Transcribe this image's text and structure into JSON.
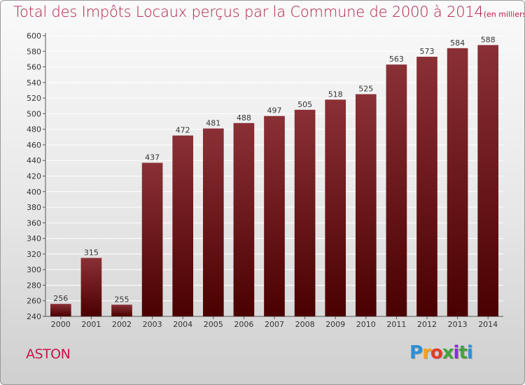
{
  "title": "Total des Impôts Locaux perçus par la Commune de 2000 à 2014",
  "unit": "(en milliers d'€)",
  "commune": "ASTON",
  "brand": "Proxiti",
  "colors": {
    "bar_top": "#8a3036",
    "bar_bottom": "#4a0000",
    "title": "#b51f45",
    "grid": "#ffffff"
  },
  "chart_data": {
    "type": "bar",
    "title": "Total des Impôts Locaux perçus par la Commune de 2000 à 2014",
    "subtitle": "(en milliers d'€)",
    "xlabel": "",
    "ylabel": "",
    "ylim": [
      240,
      600
    ],
    "ytick_step": 20,
    "grid": true,
    "categories": [
      "2000",
      "2001",
      "2002",
      "2003",
      "2004",
      "2005",
      "2006",
      "2007",
      "2008",
      "2009",
      "2010",
      "2011",
      "2012",
      "2013",
      "2014"
    ],
    "values": [
      256,
      315,
      255,
      437,
      472,
      481,
      488,
      497,
      505,
      518,
      525,
      563,
      573,
      584,
      588
    ]
  }
}
